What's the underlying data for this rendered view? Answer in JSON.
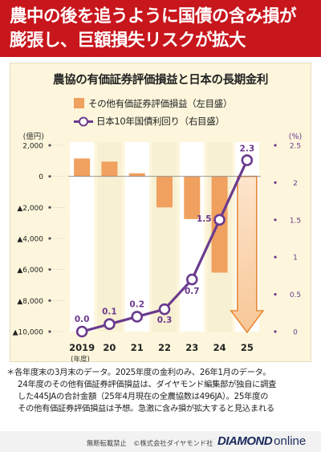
{
  "headline": {
    "line1": "農中の後を追うように国債の含み損が",
    "line2": "膨張し、巨額損失リスクが拡大"
  },
  "chart_data": {
    "type": "bar+line",
    "title": "農協の有価証券評価損益と日本の長期金利",
    "categories": [
      "2019",
      "20",
      "21",
      "22",
      "23",
      "24",
      "25"
    ],
    "x_unit": "(年度)",
    "left_axis": {
      "unit": "(億円)",
      "ticks": [
        2000,
        0,
        -2000,
        -4000,
        -6000,
        -8000,
        -10000
      ],
      "tick_labels": [
        "2,000",
        "0",
        "▲2,000",
        "▲4,000",
        "▲6,000",
        "▲8,000",
        "▲10,000"
      ],
      "range": [
        -10000,
        2000
      ]
    },
    "right_axis": {
      "unit": "(%)",
      "ticks": [
        2.5,
        2,
        1.5,
        1,
        0.5,
        0
      ],
      "tick_labels": [
        "2.5",
        "2",
        "1.5",
        "1",
        "0.5",
        "0"
      ],
      "range": [
        0,
        2.5
      ]
    },
    "series": [
      {
        "name": "その他有価証券評価損益（左目盛）",
        "kind": "bar",
        "axis": "left",
        "color": "#f0a05f",
        "values": [
          1150,
          950,
          200,
          -2000,
          -2750,
          -6200,
          null
        ],
        "projected": {
          "category": "25",
          "direction": "down"
        }
      },
      {
        "name": "日本10年国債利回り（右目盛）",
        "kind": "line",
        "axis": "right",
        "color": "#6b3a8e",
        "values": [
          0.0,
          0.1,
          0.2,
          0.3,
          0.7,
          1.5,
          2.3
        ],
        "labels": [
          "0.0",
          "0.1",
          "0.2",
          "0.3",
          "0.7",
          "1.5",
          "2.3"
        ]
      }
    ],
    "grid": false,
    "legend": "top-left"
  },
  "notes": [
    "＊各年度末の3月末のデータ。2025年度の金利のみ、26年1月のデータ。",
    "24年度のその他有価証券評価損益は、ダイヤモンド編集部が独自に調査",
    "した445JAの合計金額（25年4月現在の全農協数は496JA）。25年度の",
    "その他有価証券評価損益は予想。急激に含み損が拡大すると見込まれる"
  ],
  "footer": {
    "copyright": "無断転載禁止　©株式会社ダイヤモンド社",
    "brand_bold": "DIAMOND",
    "brand_light": "online"
  },
  "colors": {
    "headline_bg": "#c8161d",
    "panel_bg": "#fdf6dc",
    "bar": "#f0a05f",
    "line": "#6b3a8e",
    "brand": "#1a2a5c"
  }
}
